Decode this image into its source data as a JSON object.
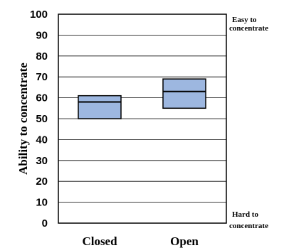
{
  "chart_data": {
    "type": "box",
    "categories": [
      "Closed",
      "Open"
    ],
    "boxes": [
      {
        "category": "Closed",
        "q1": 50,
        "median": 58,
        "q3": 61
      },
      {
        "category": "Open",
        "q1": 55,
        "median": 63,
        "q3": 69
      }
    ],
    "ylabel": "Ability to concentrate",
    "ylim": [
      0,
      100
    ],
    "yticks": [
      "0",
      "10",
      "20",
      "30",
      "40",
      "50",
      "60",
      "70",
      "80",
      "90",
      "100"
    ],
    "grid": true,
    "annotations": {
      "top_line1": "Easy to",
      "top_line2": "concentrate",
      "bottom_line1": "Hard to",
      "bottom_line2": "concentrate"
    },
    "colors": {
      "box_fill": "#9db7e0",
      "box_stroke": "#000000"
    }
  }
}
